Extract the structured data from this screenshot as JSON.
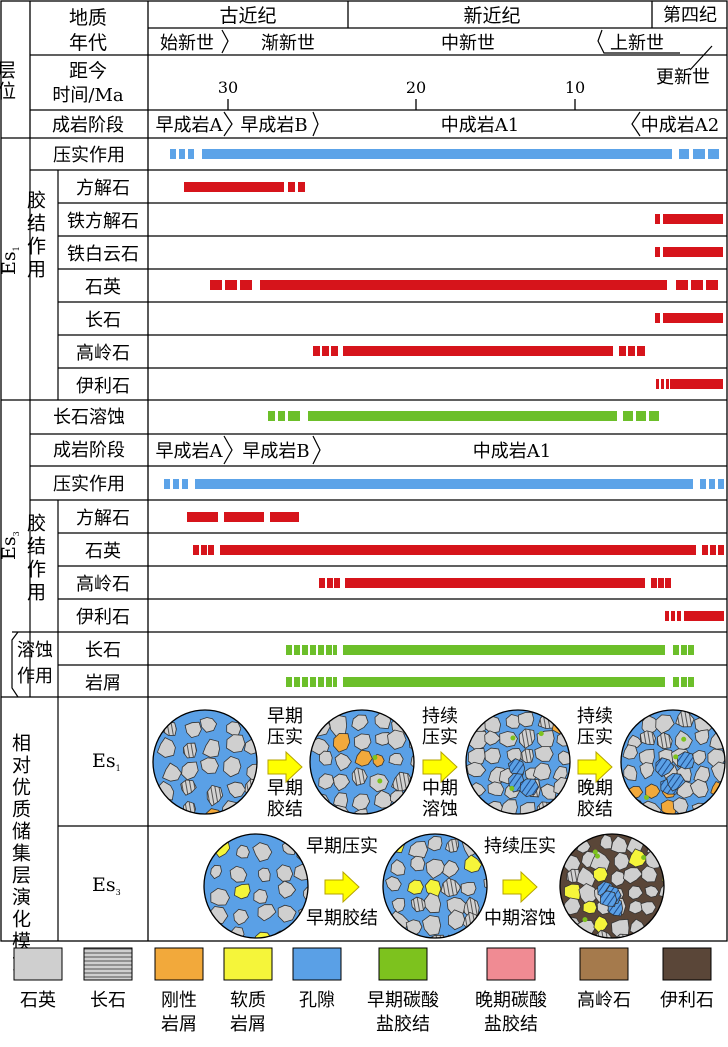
{
  "header": {
    "layer_label": "层位",
    "era_label_line1": "地质",
    "era_label_line2": "年代",
    "periods": [
      "古近纪",
      "新近纪",
      "第四纪"
    ],
    "epochs": [
      "始新世",
      "渐新世",
      "中新世",
      "上新世",
      "更新世"
    ],
    "time_label_line1": "距今",
    "time_label_line2": "时间/Ma",
    "ticks": [
      "30",
      "20",
      "10"
    ],
    "stage_label": "成岩阶段",
    "stages": [
      "早成岩A",
      "早成岩B",
      "中成岩A1",
      "中成岩A2"
    ]
  },
  "es1": {
    "layer_name": "Es",
    "layer_sub": "1",
    "compaction": "压实作用",
    "cement_group": "胶结作用",
    "cements": [
      "方解石",
      "铁方解石",
      "铁白云石",
      "石英",
      "长石",
      "高岭石",
      "伊利石"
    ]
  },
  "es3": {
    "layer_name": "Es",
    "layer_sub": "3",
    "feldspar_dissolution": "长石溶蚀",
    "stage_label": "成岩阶段",
    "stages": [
      "早成岩A",
      "早成岩B",
      "中成岩A1"
    ],
    "compaction": "压实作用",
    "cement_group": "胶结作用",
    "cements": [
      "方解石",
      "石英",
      "高岭石",
      "伊利石"
    ],
    "dissolution_group": "溶蚀作用",
    "dissolution_items": [
      "长石",
      "岩屑"
    ]
  },
  "model": {
    "title": "相对优质储集层演化模式",
    "es1_label": "Es",
    "es1_sub": "1",
    "es3_label": "Es",
    "es3_sub": "3",
    "es1_steps": [
      {
        "top": "早期压实",
        "bottom": "早期胶结"
      },
      {
        "top": "持续压实",
        "bottom": "中期溶蚀"
      },
      {
        "top": "持续压实",
        "bottom": "晚期胶结"
      }
    ],
    "es3_steps": [
      {
        "top": "早期压实",
        "bottom": "早期胶结"
      },
      {
        "top": "持续压实",
        "bottom": "中期溶蚀"
      }
    ]
  },
  "legend": [
    {
      "label": "石英",
      "color": "#cfcfcf",
      "pattern": "solid"
    },
    {
      "label": "长石",
      "color": "#cfcfcf",
      "pattern": "stripes"
    },
    {
      "label": "刚性岩屑",
      "color": "#f2a93b",
      "pattern": "solid"
    },
    {
      "label": "软质岩屑",
      "color": "#f5f53a",
      "pattern": "solid"
    },
    {
      "label": "孔隙",
      "color": "#5aa0e6",
      "pattern": "solid"
    },
    {
      "label": "早期碳酸盐胶结",
      "color": "#7dc21e",
      "pattern": "solid"
    },
    {
      "label": "晚期碳酸盐胶结",
      "color": "#f08b93",
      "pattern": "solid"
    },
    {
      "label": "高岭石",
      "color": "#a57a4c",
      "pattern": "solid"
    },
    {
      "label": "伊利石",
      "color": "#5a4638",
      "pattern": "solid"
    }
  ],
  "colors": {
    "compaction": "#5ca3e8",
    "cement": "#d6141b",
    "dissolution": "#6cbf2a",
    "arrow": "#ffff00"
  }
}
